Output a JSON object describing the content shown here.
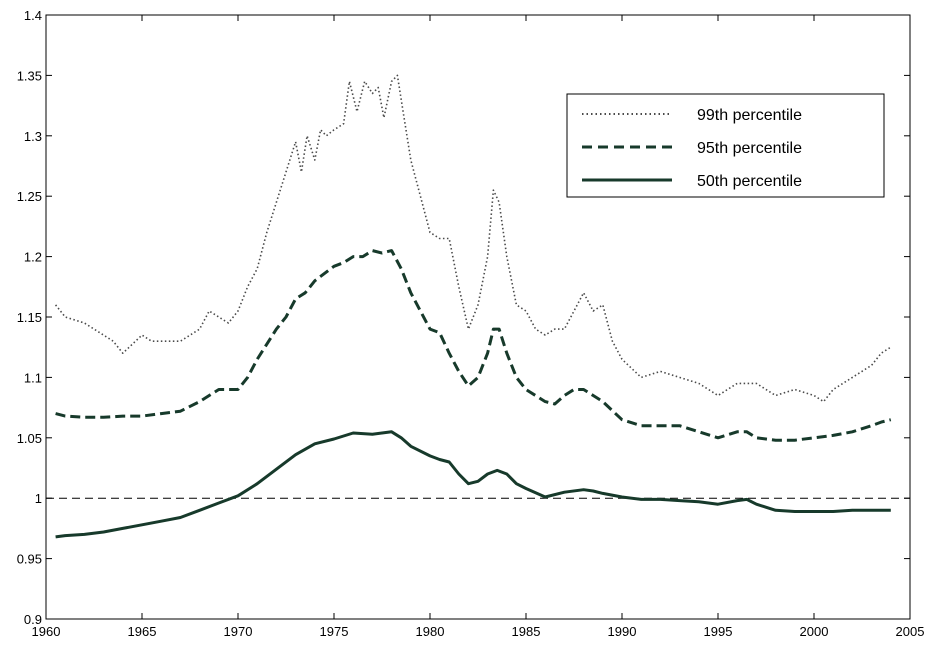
{
  "chart_data": {
    "type": "line",
    "title": "",
    "xlabel": "",
    "ylabel": "",
    "xlim": [
      1960,
      2005
    ],
    "ylim": [
      0.9,
      1.4
    ],
    "x_ticks": [
      1960,
      1965,
      1970,
      1975,
      1980,
      1985,
      1990,
      1995,
      2000,
      2005
    ],
    "y_ticks": [
      0.9,
      0.95,
      1,
      1.05,
      1.1,
      1.15,
      1.2,
      1.25,
      1.3,
      1.35,
      1.4
    ],
    "x_tick_labels": [
      "1960",
      "1965",
      "1970",
      "1975",
      "1980",
      "1985",
      "1990",
      "1995",
      "2000",
      "2005"
    ],
    "y_tick_labels": [
      "0.9",
      "0.95",
      "1",
      "1.05",
      "1.1",
      "1.15",
      "1.2",
      "1.25",
      "1.3",
      "1.35",
      "1.4"
    ],
    "grid": false,
    "legend_position": "top-right",
    "reference_line": {
      "y": 1,
      "style": "dashed"
    },
    "series": [
      {
        "name": "99th percentile",
        "style": "dotted",
        "color": "#4a4a4a",
        "x": [
          1960.5,
          1961,
          1962,
          1963,
          1963.5,
          1964,
          1965,
          1965.5,
          1966,
          1967,
          1968,
          1968.5,
          1969,
          1969.5,
          1970,
          1970.5,
          1971,
          1971.5,
          1972,
          1972.5,
          1973,
          1973.3,
          1973.6,
          1974,
          1974.3,
          1974.6,
          1975,
          1975.5,
          1975.8,
          1976.2,
          1976.6,
          1977,
          1977.3,
          1977.6,
          1978,
          1978.3,
          1978.6,
          1979,
          1979.5,
          1980,
          1980.5,
          1981,
          1981.5,
          1982,
          1982.5,
          1983,
          1983.3,
          1983.6,
          1984,
          1984.5,
          1985,
          1985.5,
          1986,
          1986.5,
          1987,
          1987.5,
          1988,
          1988.5,
          1989,
          1989.5,
          1990,
          1991,
          1992,
          1993,
          1994,
          1995,
          1996,
          1997,
          1998,
          1999,
          2000,
          2000.5,
          2001,
          2002,
          2003,
          2003.5,
          2004
        ],
        "values": [
          1.16,
          1.15,
          1.145,
          1.135,
          1.13,
          1.12,
          1.135,
          1.13,
          1.13,
          1.13,
          1.14,
          1.155,
          1.15,
          1.145,
          1.155,
          1.175,
          1.19,
          1.22,
          1.245,
          1.27,
          1.295,
          1.27,
          1.3,
          1.28,
          1.305,
          1.3,
          1.305,
          1.31,
          1.345,
          1.32,
          1.345,
          1.335,
          1.34,
          1.315,
          1.345,
          1.35,
          1.32,
          1.28,
          1.25,
          1.22,
          1.215,
          1.215,
          1.175,
          1.14,
          1.16,
          1.2,
          1.255,
          1.245,
          1.2,
          1.16,
          1.155,
          1.14,
          1.135,
          1.14,
          1.14,
          1.155,
          1.17,
          1.155,
          1.16,
          1.13,
          1.115,
          1.1,
          1.105,
          1.1,
          1.095,
          1.085,
          1.095,
          1.095,
          1.085,
          1.09,
          1.085,
          1.08,
          1.09,
          1.1,
          1.11,
          1.12,
          1.125
        ]
      },
      {
        "name": "95th percentile",
        "style": "dashed",
        "color": "#173a2b",
        "x": [
          1960.5,
          1961,
          1962,
          1963,
          1964,
          1965,
          1966,
          1967,
          1968,
          1968.5,
          1969,
          1970,
          1970.5,
          1971,
          1972,
          1972.5,
          1973,
          1973.5,
          1974,
          1975,
          1975.5,
          1976,
          1976.5,
          1977,
          1977.5,
          1978,
          1978.5,
          1979,
          1980,
          1980.5,
          1981,
          1981.5,
          1982,
          1982.5,
          1983,
          1983.3,
          1983.6,
          1984,
          1984.5,
          1985,
          1986,
          1986.5,
          1987,
          1987.5,
          1988,
          1988.5,
          1989,
          1990,
          1991,
          1992,
          1993,
          1994,
          1995,
          1996,
          1996.5,
          1997,
          1998,
          1999,
          2000,
          2001,
          2002,
          2003,
          2003.5,
          2004
        ],
        "values": [
          1.07,
          1.068,
          1.067,
          1.067,
          1.068,
          1.068,
          1.07,
          1.072,
          1.08,
          1.085,
          1.09,
          1.09,
          1.1,
          1.115,
          1.14,
          1.15,
          1.165,
          1.17,
          1.18,
          1.192,
          1.195,
          1.2,
          1.2,
          1.205,
          1.203,
          1.205,
          1.19,
          1.17,
          1.14,
          1.137,
          1.12,
          1.105,
          1.093,
          1.1,
          1.12,
          1.14,
          1.14,
          1.12,
          1.1,
          1.09,
          1.08,
          1.078,
          1.085,
          1.09,
          1.09,
          1.085,
          1.08,
          1.065,
          1.06,
          1.06,
          1.06,
          1.055,
          1.05,
          1.055,
          1.055,
          1.05,
          1.048,
          1.048,
          1.05,
          1.052,
          1.055,
          1.06,
          1.063,
          1.065
        ]
      },
      {
        "name": "50th percentile",
        "style": "solid",
        "color": "#173a2b",
        "x": [
          1960.5,
          1961,
          1962,
          1963,
          1964,
          1965,
          1966,
          1967,
          1968,
          1969,
          1970,
          1971,
          1972,
          1973,
          1974,
          1975,
          1976,
          1977,
          1977.5,
          1978,
          1978.5,
          1979,
          1980,
          1980.5,
          1981,
          1981.5,
          1982,
          1982.5,
          1983,
          1983.5,
          1984,
          1984.5,
          1985,
          1986,
          1987,
          1988,
          1988.5,
          1989,
          1990,
          1991,
          1992,
          1993,
          1994,
          1995,
          1996,
          1996.5,
          1997,
          1998,
          1999,
          2000,
          2001,
          2002,
          2003,
          2004
        ],
        "values": [
          0.968,
          0.969,
          0.97,
          0.972,
          0.975,
          0.978,
          0.981,
          0.984,
          0.99,
          0.996,
          1.002,
          1.012,
          1.024,
          1.036,
          1.045,
          1.049,
          1.054,
          1.053,
          1.054,
          1.055,
          1.05,
          1.043,
          1.035,
          1.032,
          1.03,
          1.02,
          1.012,
          1.014,
          1.02,
          1.023,
          1.02,
          1.012,
          1.008,
          1.001,
          1.005,
          1.007,
          1.006,
          1.004,
          1.001,
          0.999,
          0.999,
          0.998,
          0.997,
          0.995,
          0.998,
          0.999,
          0.995,
          0.99,
          0.989,
          0.989,
          0.989,
          0.99,
          0.99,
          0.99
        ]
      }
    ]
  }
}
